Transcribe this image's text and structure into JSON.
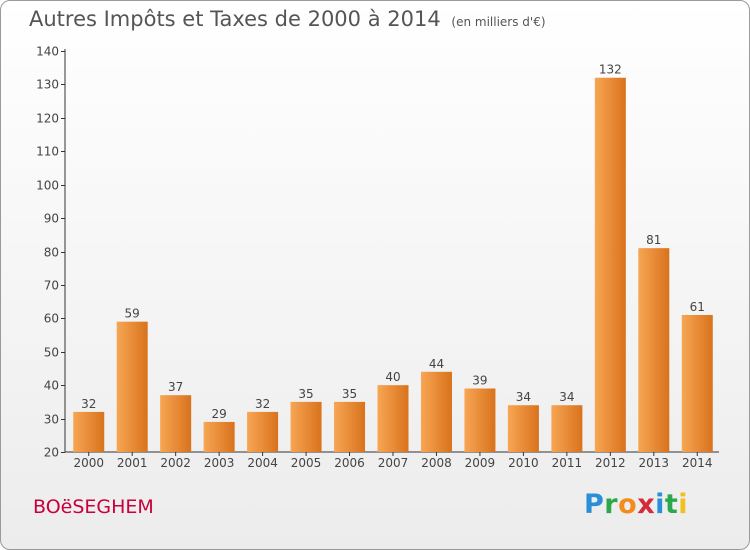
{
  "header": {
    "title": "Autres Impôts et Taxes de 2000 à 2014",
    "subtitle": "(en milliers d'€)"
  },
  "commune": "BOëSEGHEM",
  "logo": {
    "text": "Proxiti",
    "letters": [
      {
        "ch": "P",
        "color": "#2a8fd6"
      },
      {
        "ch": "r",
        "color": "#2aa84a"
      },
      {
        "ch": "o",
        "color": "#f28c1c"
      },
      {
        "ch": "x",
        "color": "#d42a3a"
      },
      {
        "ch": "i",
        "color": "#2a8fd6"
      },
      {
        "ch": "t",
        "color": "#2aa84a"
      },
      {
        "ch": "i",
        "color": "#f2c01c"
      }
    ]
  },
  "colors": {
    "bar_light": "#f7a654",
    "bar_dark": "#d9721c",
    "axis": "#333333",
    "grid": "#dddddd"
  },
  "chart_data": {
    "type": "bar",
    "title": "Autres Impôts et Taxes de 2000 à 2014",
    "subtitle": "(en milliers d'€)",
    "categories": [
      "2000",
      "2001",
      "2002",
      "2003",
      "2004",
      "2005",
      "2006",
      "2007",
      "2008",
      "2009",
      "2010",
      "2011",
      "2012",
      "2013",
      "2014"
    ],
    "values": [
      32,
      59,
      37,
      29,
      32,
      35,
      35,
      40,
      44,
      39,
      34,
      34,
      132,
      81,
      61
    ],
    "ylim": [
      20,
      140
    ],
    "yticks": [
      20,
      30,
      40,
      50,
      60,
      70,
      80,
      90,
      100,
      110,
      120,
      130,
      140
    ],
    "xlabel": "",
    "ylabel": "",
    "grid": false,
    "legend": "none"
  }
}
